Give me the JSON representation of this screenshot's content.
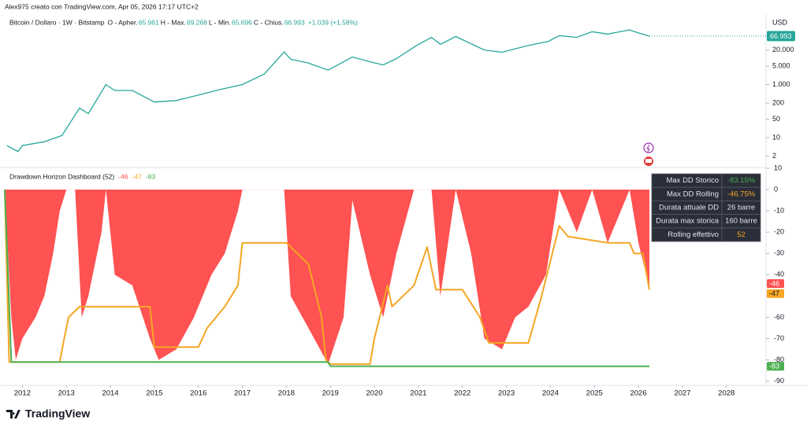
{
  "header": "Alex975 creato con TradingView.com, Apr 05, 2026 17:17 UTC+2",
  "logo": "TradingView",
  "chart_data": [
    {
      "type": "line",
      "title": "Bitcoin / Dollaro · 1W · Bitstamp",
      "currency": "USD",
      "color": "#26a69a",
      "log_scale": true,
      "grid": false,
      "ohlc": [
        {
          "name": "O - Apher.",
          "value": 65961,
          "label": "65.961"
        },
        {
          "name": "H - Max.",
          "value": 69268,
          "label": "69.268"
        },
        {
          "name": "L - Min.",
          "value": 65696,
          "label": "65.696"
        },
        {
          "name": "C - Chius.",
          "value": 66993,
          "label": "66.993"
        }
      ],
      "change": "+1.039 (+1,58%)",
      "x": [
        2011.65,
        2011.9,
        2012.0,
        2012.5,
        2012.9,
        2013.3,
        2013.5,
        2013.9,
        2014.1,
        2014.5,
        2015.0,
        2015.5,
        2016.0,
        2016.5,
        2017.0,
        2017.5,
        2017.95,
        2018.1,
        2018.5,
        2018.95,
        2019.5,
        2019.9,
        2020.2,
        2020.5,
        2020.95,
        2021.3,
        2021.5,
        2021.85,
        2022.5,
        2022.9,
        2023.5,
        2023.95,
        2024.2,
        2024.6,
        2024.95,
        2025.3,
        2025.8,
        2026.0,
        2026.25
      ],
      "values": [
        5,
        3,
        5,
        7,
        12,
        130,
        80,
        1000,
        600,
        600,
        220,
        250,
        400,
        650,
        1000,
        2500,
        17000,
        9000,
        6500,
        3500,
        11000,
        7200,
        5500,
        9500,
        29000,
        60000,
        33000,
        65000,
        20000,
        16500,
        30000,
        42000,
        70000,
        60000,
        98000,
        80000,
        115000,
        88000,
        67000
      ],
      "xlim": [
        2011.6,
        2028.9
      ],
      "ylim": [
        0.8,
        450000
      ],
      "yticks": [
        2,
        10,
        50,
        200,
        {
          "value": 1000,
          "label": "1.000"
        },
        {
          "value": 5000,
          "label": "5.000"
        },
        {
          "value": 20000,
          "label": "20.000"
        }
      ]
    },
    {
      "type": "line",
      "title": "Drawdown Horizon Dashboard (52)",
      "grid": false,
      "xlim": [
        2011.6,
        2028.9
      ],
      "ylim": [
        -92,
        10
      ],
      "xticks": [
        2012,
        2013,
        2014,
        2015,
        2016,
        2017,
        2018,
        2019,
        2020,
        2021,
        2022,
        2023,
        2024,
        2025,
        2026,
        2027,
        2028
      ],
      "yticks": [
        10,
        0,
        -10,
        -20,
        -30,
        -40,
        -50,
        -60,
        -70,
        -80,
        -90
      ],
      "series": [
        {
          "type": "area",
          "color": "#ff5252",
          "x": [
            2011.6,
            2011.65,
            2011.75,
            2011.85,
            2012.0,
            2012.3,
            2012.5,
            2012.7,
            2012.85,
            2013.0,
            2013.2,
            2013.35,
            2013.5,
            2013.8,
            2013.9,
            2014.1,
            2014.5,
            2014.9,
            2015.1,
            2015.5,
            2015.9,
            2016.3,
            2016.6,
            2016.9,
            2017.0,
            2017.95,
            2018.1,
            2018.5,
            2018.95,
            2019.3,
            2019.5,
            2019.9,
            2020.2,
            2020.5,
            2020.9,
            2021.3,
            2021.5,
            2021.85,
            2022.2,
            2022.5,
            2022.9,
            2023.2,
            2023.5,
            2023.9,
            2024.2,
            2024.6,
            2024.95,
            2025.3,
            2025.8,
            2026.0,
            2026.25
          ],
          "values": [
            0,
            -20,
            -60,
            -80,
            -70,
            -60,
            -50,
            -30,
            -10,
            0,
            0,
            -60,
            -50,
            -20,
            0,
            -40,
            -45,
            -70,
            -80,
            -75,
            -60,
            -40,
            -30,
            -10,
            0,
            0,
            -50,
            -65,
            -82,
            -60,
            -5,
            -40,
            -60,
            -30,
            0,
            0,
            -50,
            0,
            -30,
            -70,
            -75,
            -60,
            -55,
            -40,
            0,
            -20,
            0,
            -25,
            0,
            -25,
            -46
          ]
        },
        {
          "type": "line",
          "color": "#f5a623",
          "x": [
            2011.6,
            2011.7,
            2012.85,
            2012.95,
            2013.05,
            2013.3,
            2014.9,
            2015.0,
            2016.0,
            2016.2,
            2016.6,
            2016.9,
            2017.0,
            2018.0,
            2018.5,
            2018.8,
            2018.9,
            2019.0,
            2019.9,
            2020.0,
            2020.3,
            2020.4,
            2020.9,
            2021.2,
            2021.4,
            2022.0,
            2022.4,
            2022.6,
            2023.5,
            2023.8,
            2024.2,
            2024.4,
            2025.3,
            2025.8,
            2025.9,
            2026.1,
            2026.25
          ],
          "values": [
            0,
            -81,
            -81,
            -70,
            -60,
            -55,
            -55,
            -74,
            -74,
            -65,
            -55,
            -45,
            -25,
            -25,
            -35,
            -60,
            -80,
            -82,
            -82,
            -70,
            -45,
            -55,
            -45,
            -27,
            -47,
            -47,
            -60,
            -72,
            -72,
            -50,
            -17,
            -22,
            -25,
            -25,
            -30,
            -30,
            -47
          ]
        },
        {
          "type": "line",
          "color": "#4caf50",
          "x": [
            2011.6,
            2011.75,
            2018.95,
            2019.0,
            2026.25
          ],
          "values": [
            0,
            -81,
            -81,
            -83,
            -83
          ]
        }
      ]
    }
  ],
  "table": {
    "rows": [
      [
        "Max DD Storico",
        "-83.15%"
      ],
      [
        "Max DD Rolling",
        "-46.75%"
      ],
      [
        "Durata attuale DD",
        "26 barre"
      ],
      [
        "Durata max storica",
        "160 barre"
      ],
      [
        "Rolling effettivo",
        "52"
      ]
    ]
  }
}
